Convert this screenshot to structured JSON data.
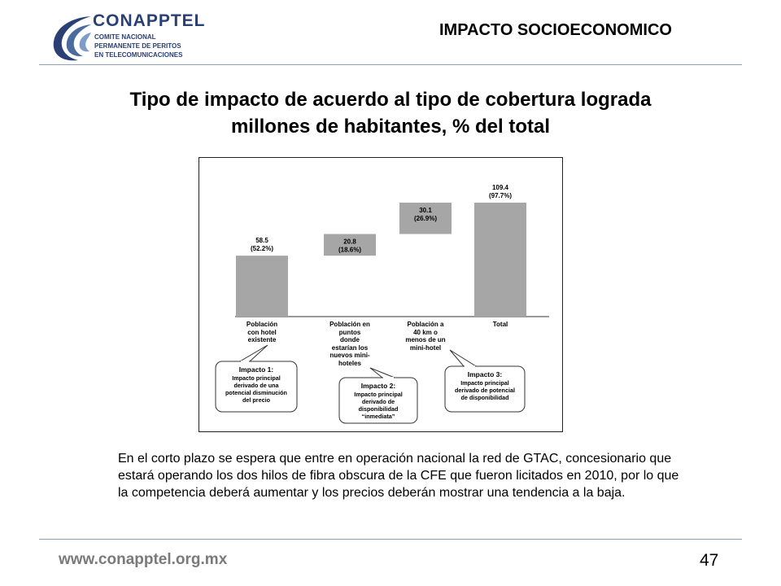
{
  "header": {
    "logo": {
      "name": "CONAPPTEL",
      "line1": "COMITE NACIONAL",
      "line2": "PERMANENTE DE PERITOS",
      "line3": "EN TELECOMUNICACIONES"
    },
    "section_title": "IMPACTO SOCIOECONOMICO"
  },
  "title": {
    "line1": "Tipo de impacto de acuerdo al tipo de cobertura lograda",
    "line2": "millones de habitantes, % del total"
  },
  "chart_data": {
    "type": "bar",
    "subtype": "waterfall",
    "categories": [
      "Población con hotel existente",
      "Población en puntos donde estarían los nuevos mini-hoteles",
      "Población a 40 km o menos de un mini-hotel",
      "Total"
    ],
    "category_lines": [
      [
        "Población",
        "con hotel",
        "existente"
      ],
      [
        "Población en",
        "puntos",
        "donde",
        "estarían los",
        "nuevos mini-",
        "hoteles"
      ],
      [
        "Población a",
        "40 km o",
        "menos de un",
        "mini-hotel"
      ],
      [
        "Total"
      ]
    ],
    "values": [
      58.5,
      20.8,
      30.1,
      109.4
    ],
    "value_labels": [
      "58.5",
      "20.8",
      "30.1",
      "109.4"
    ],
    "percent_labels": [
      "(52.2%)",
      "(18.6%)",
      "(26.9%)",
      "(97.7%)"
    ],
    "bar_colors": [
      "#a6a6a6",
      "#a6a6a6",
      "#a6a6a6",
      "#a6a6a6"
    ],
    "ylim": [
      0,
      109.4
    ],
    "grid": false,
    "annotations": [
      {
        "title": "Impacto 1:",
        "lines": [
          "Impacto principal",
          "derivado de una",
          "potencial disminución",
          "del precio"
        ]
      },
      {
        "title": "Impacto 2:",
        "lines": [
          "Impacto principal",
          "derivado de",
          "disponibilidad",
          "“inmediata”"
        ]
      },
      {
        "title": "Impacto 3:",
        "lines": [
          "Impacto principal",
          "derivado de potencial",
          "de disponibilidad"
        ]
      }
    ]
  },
  "body": {
    "text": "En el corto plazo se espera que entre en operación nacional la red de GTAC, concesionario que estará operando los dos hilos de fibra obscura de la CFE que fueron licitados en 2010, por lo que la competencia deberá aumentar y los precios deberán mostrar una tendencia a la baja."
  },
  "footer": {
    "url": "www.conapptel.org.mx",
    "page": "47"
  }
}
